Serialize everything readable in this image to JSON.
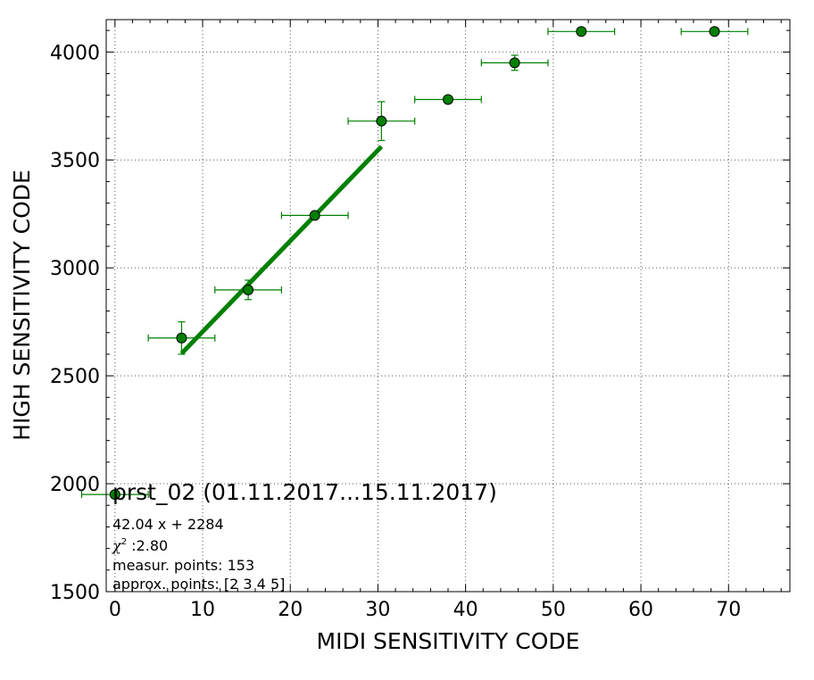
{
  "chart_data": {
    "type": "scatter",
    "xlabel": "MIDI SENSITIVITY CODE",
    "ylabel": "HIGH SENSITIVITY CODE",
    "xlim": [
      -1,
      77
    ],
    "ylim": [
      1500,
      4150
    ],
    "xticks": [
      0,
      10,
      20,
      30,
      40,
      50,
      60,
      70
    ],
    "yticks": [
      1500,
      2000,
      2500,
      3000,
      3500,
      4000
    ],
    "xtick_labels": [
      "0",
      "10",
      "20",
      "30",
      "40",
      "50",
      "60",
      "70"
    ],
    "ytick_labels": [
      "1500",
      "2000",
      "2500",
      "3000",
      "3500",
      "4000"
    ],
    "grid": true,
    "colors": {
      "series": "#008000",
      "marker_edge": "#000000",
      "grid": "#555555"
    },
    "series": [
      {
        "points": [
          {
            "x": 0,
            "y": 1950,
            "xerr": 3.8,
            "yerr": 15
          },
          {
            "x": 7.6,
            "y": 2675,
            "xerr": 3.8,
            "yerr": 75
          },
          {
            "x": 15.2,
            "y": 2898,
            "xerr": 3.8,
            "yerr": 45
          },
          {
            "x": 22.8,
            "y": 3243,
            "xerr": 3.8,
            "yerr": 10
          },
          {
            "x": 30.4,
            "y": 3680,
            "xerr": 3.8,
            "yerr": 90
          },
          {
            "x": 38.0,
            "y": 3780,
            "xerr": 3.8,
            "yerr": 15
          },
          {
            "x": 45.6,
            "y": 3950,
            "xerr": 3.8,
            "yerr": 35
          },
          {
            "x": 53.2,
            "y": 4095,
            "xerr": 3.8,
            "yerr": 0
          },
          {
            "x": 68.4,
            "y": 4095,
            "xerr": 3.8,
            "yerr": 0
          }
        ]
      }
    ],
    "fit": {
      "slope": 42.04,
      "intercept": 2284,
      "x_range": [
        7.6,
        30.4
      ]
    },
    "annotation": {
      "title": "prst_02 (01.11.2017...15.11.2017)",
      "equation": "42.04 x + 2284",
      "chi_symbol": "χ",
      "chi_exponent": "2",
      "chi_value": " :2.80",
      "measur_points": "measur. points: 153",
      "approx_points": "approx. points: [2 3 4 5]"
    }
  }
}
